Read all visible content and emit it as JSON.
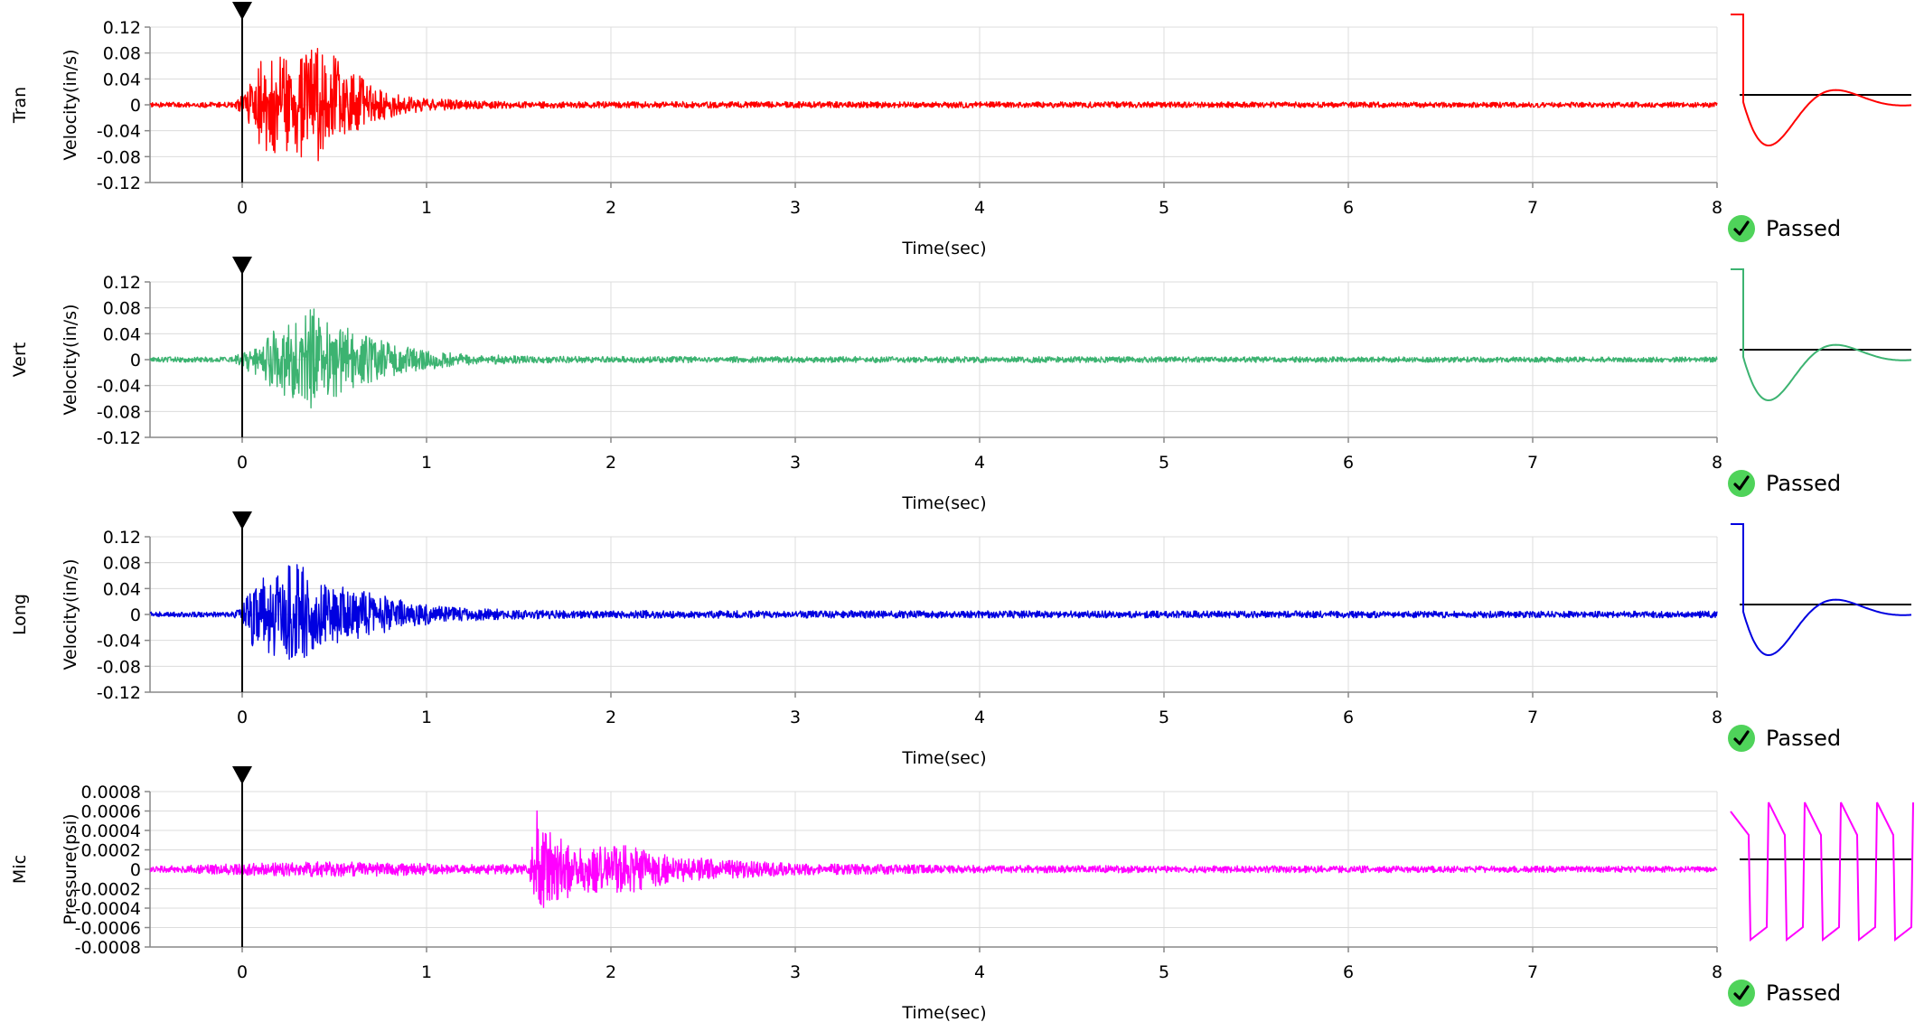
{
  "chart_data": [
    {
      "type": "line",
      "channel": "Tran",
      "ylabel": "Velocity(in/s)",
      "xlabel": "Time(sec)",
      "xlim": [
        -0.5,
        8
      ],
      "ylim": [
        -0.12,
        0.12
      ],
      "x_ticks": [
        0,
        1,
        2,
        3,
        4,
        5,
        6,
        7,
        8
      ],
      "y_ticks": [
        0.12,
        0.08,
        0.04,
        0,
        -0.04,
        -0.08,
        -0.12
      ],
      "y_tick_labels": [
        "0.12",
        "0.08",
        "0.04",
        "0",
        "-0.04",
        "-0.08",
        "-0.12"
      ],
      "trigger_time": 0,
      "color": "#ff0000",
      "grid": true,
      "envelope": [
        [
          -0.5,
          0.004
        ],
        [
          -0.05,
          0.004
        ],
        [
          0.0,
          0.015
        ],
        [
          0.1,
          0.07
        ],
        [
          0.2,
          0.075
        ],
        [
          0.3,
          0.08
        ],
        [
          0.4,
          0.09
        ],
        [
          0.5,
          0.075
        ],
        [
          0.6,
          0.05
        ],
        [
          0.7,
          0.035
        ],
        [
          0.8,
          0.02
        ],
        [
          0.9,
          0.013
        ],
        [
          1.0,
          0.01
        ],
        [
          1.2,
          0.007
        ],
        [
          1.5,
          0.005
        ],
        [
          8.0,
          0.004
        ]
      ],
      "seed": 11,
      "status": "Passed",
      "calibration": {
        "type": "pulse",
        "color": "#ff0000"
      }
    },
    {
      "type": "line",
      "channel": "Vert",
      "ylabel": "Velocity(in/s)",
      "xlabel": "Time(sec)",
      "xlim": [
        -0.5,
        8
      ],
      "ylim": [
        -0.12,
        0.12
      ],
      "x_ticks": [
        0,
        1,
        2,
        3,
        4,
        5,
        6,
        7,
        8
      ],
      "y_ticks": [
        0.12,
        0.08,
        0.04,
        0,
        -0.04,
        -0.08,
        -0.12
      ],
      "y_tick_labels": [
        "0.12",
        "0.08",
        "0.04",
        "0",
        "-0.04",
        "-0.08",
        "-0.12"
      ],
      "trigger_time": 0,
      "color": "#3cb371",
      "grid": true,
      "envelope": [
        [
          -0.5,
          0.004
        ],
        [
          -0.05,
          0.004
        ],
        [
          0.0,
          0.012
        ],
        [
          0.1,
          0.03
        ],
        [
          0.2,
          0.055
        ],
        [
          0.3,
          0.06
        ],
        [
          0.4,
          0.085
        ],
        [
          0.5,
          0.06
        ],
        [
          0.6,
          0.045
        ],
        [
          0.75,
          0.03
        ],
        [
          0.9,
          0.02
        ],
        [
          1.1,
          0.012
        ],
        [
          1.3,
          0.008
        ],
        [
          1.6,
          0.005
        ],
        [
          8.0,
          0.004
        ]
      ],
      "seed": 23,
      "status": "Passed",
      "calibration": {
        "type": "pulse",
        "color": "#3cb371"
      }
    },
    {
      "type": "line",
      "channel": "Long",
      "ylabel": "Velocity(in/s)",
      "xlabel": "Time(sec)",
      "xlim": [
        -0.5,
        8
      ],
      "ylim": [
        -0.12,
        0.12
      ],
      "x_ticks": [
        0,
        1,
        2,
        3,
        4,
        5,
        6,
        7,
        8
      ],
      "y_ticks": [
        0.12,
        0.08,
        0.04,
        0,
        -0.04,
        -0.08,
        -0.12
      ],
      "y_tick_labels": [
        "0.12",
        "0.08",
        "0.04",
        "0",
        "-0.04",
        "-0.08",
        "-0.12"
      ],
      "trigger_time": 0,
      "color": "#0000e0",
      "grid": true,
      "envelope": [
        [
          -0.5,
          0.004
        ],
        [
          -0.05,
          0.004
        ],
        [
          0.0,
          0.012
        ],
        [
          0.05,
          0.05
        ],
        [
          0.2,
          0.07
        ],
        [
          0.3,
          0.085
        ],
        [
          0.4,
          0.05
        ],
        [
          0.6,
          0.04
        ],
        [
          0.75,
          0.03
        ],
        [
          0.9,
          0.02
        ],
        [
          1.1,
          0.012
        ],
        [
          1.4,
          0.008
        ],
        [
          1.8,
          0.006
        ],
        [
          8.0,
          0.005
        ]
      ],
      "seed": 37,
      "status": "Passed",
      "calibration": {
        "type": "pulse",
        "color": "#0000e0"
      }
    },
    {
      "type": "line",
      "channel": "Mic",
      "ylabel": "Pressure(psi)",
      "xlabel": "Time(sec)",
      "xlim": [
        -0.5,
        8
      ],
      "ylim": [
        -0.0008,
        0.0008
      ],
      "x_ticks": [
        0,
        1,
        2,
        3,
        4,
        5,
        6,
        7,
        8
      ],
      "y_ticks": [
        0.0008,
        0.0006,
        0.0004,
        0.0002,
        0,
        -0.0002,
        -0.0004,
        -0.0006,
        -0.0008
      ],
      "y_tick_labels": [
        "0.0008",
        "0.0006",
        "0.0004",
        "0.0002",
        "0",
        "-0.0002",
        "-0.0004",
        "-0.0006",
        "-0.0008"
      ],
      "trigger_time": 0,
      "color": "#ff00ff",
      "grid": true,
      "envelope": [
        [
          -0.5,
          3e-05
        ],
        [
          0.2,
          7e-05
        ],
        [
          0.4,
          8e-05
        ],
        [
          0.8,
          7e-05
        ],
        [
          1.2,
          5e-05
        ],
        [
          1.55,
          5e-05
        ],
        [
          1.6,
          0.00045
        ],
        [
          1.7,
          0.00035
        ],
        [
          1.9,
          0.00025
        ],
        [
          2.1,
          0.00025
        ],
        [
          2.3,
          0.00015
        ],
        [
          2.6,
          0.0001
        ],
        [
          3.0,
          6e-05
        ],
        [
          3.5,
          5e-05
        ],
        [
          4.0,
          4e-05
        ],
        [
          8.0,
          3e-05
        ]
      ],
      "spike": {
        "x": 1.6,
        "y": 0.0006
      },
      "seed": 53,
      "status": "Passed",
      "calibration": {
        "type": "square",
        "color": "#ff00ff"
      }
    }
  ]
}
